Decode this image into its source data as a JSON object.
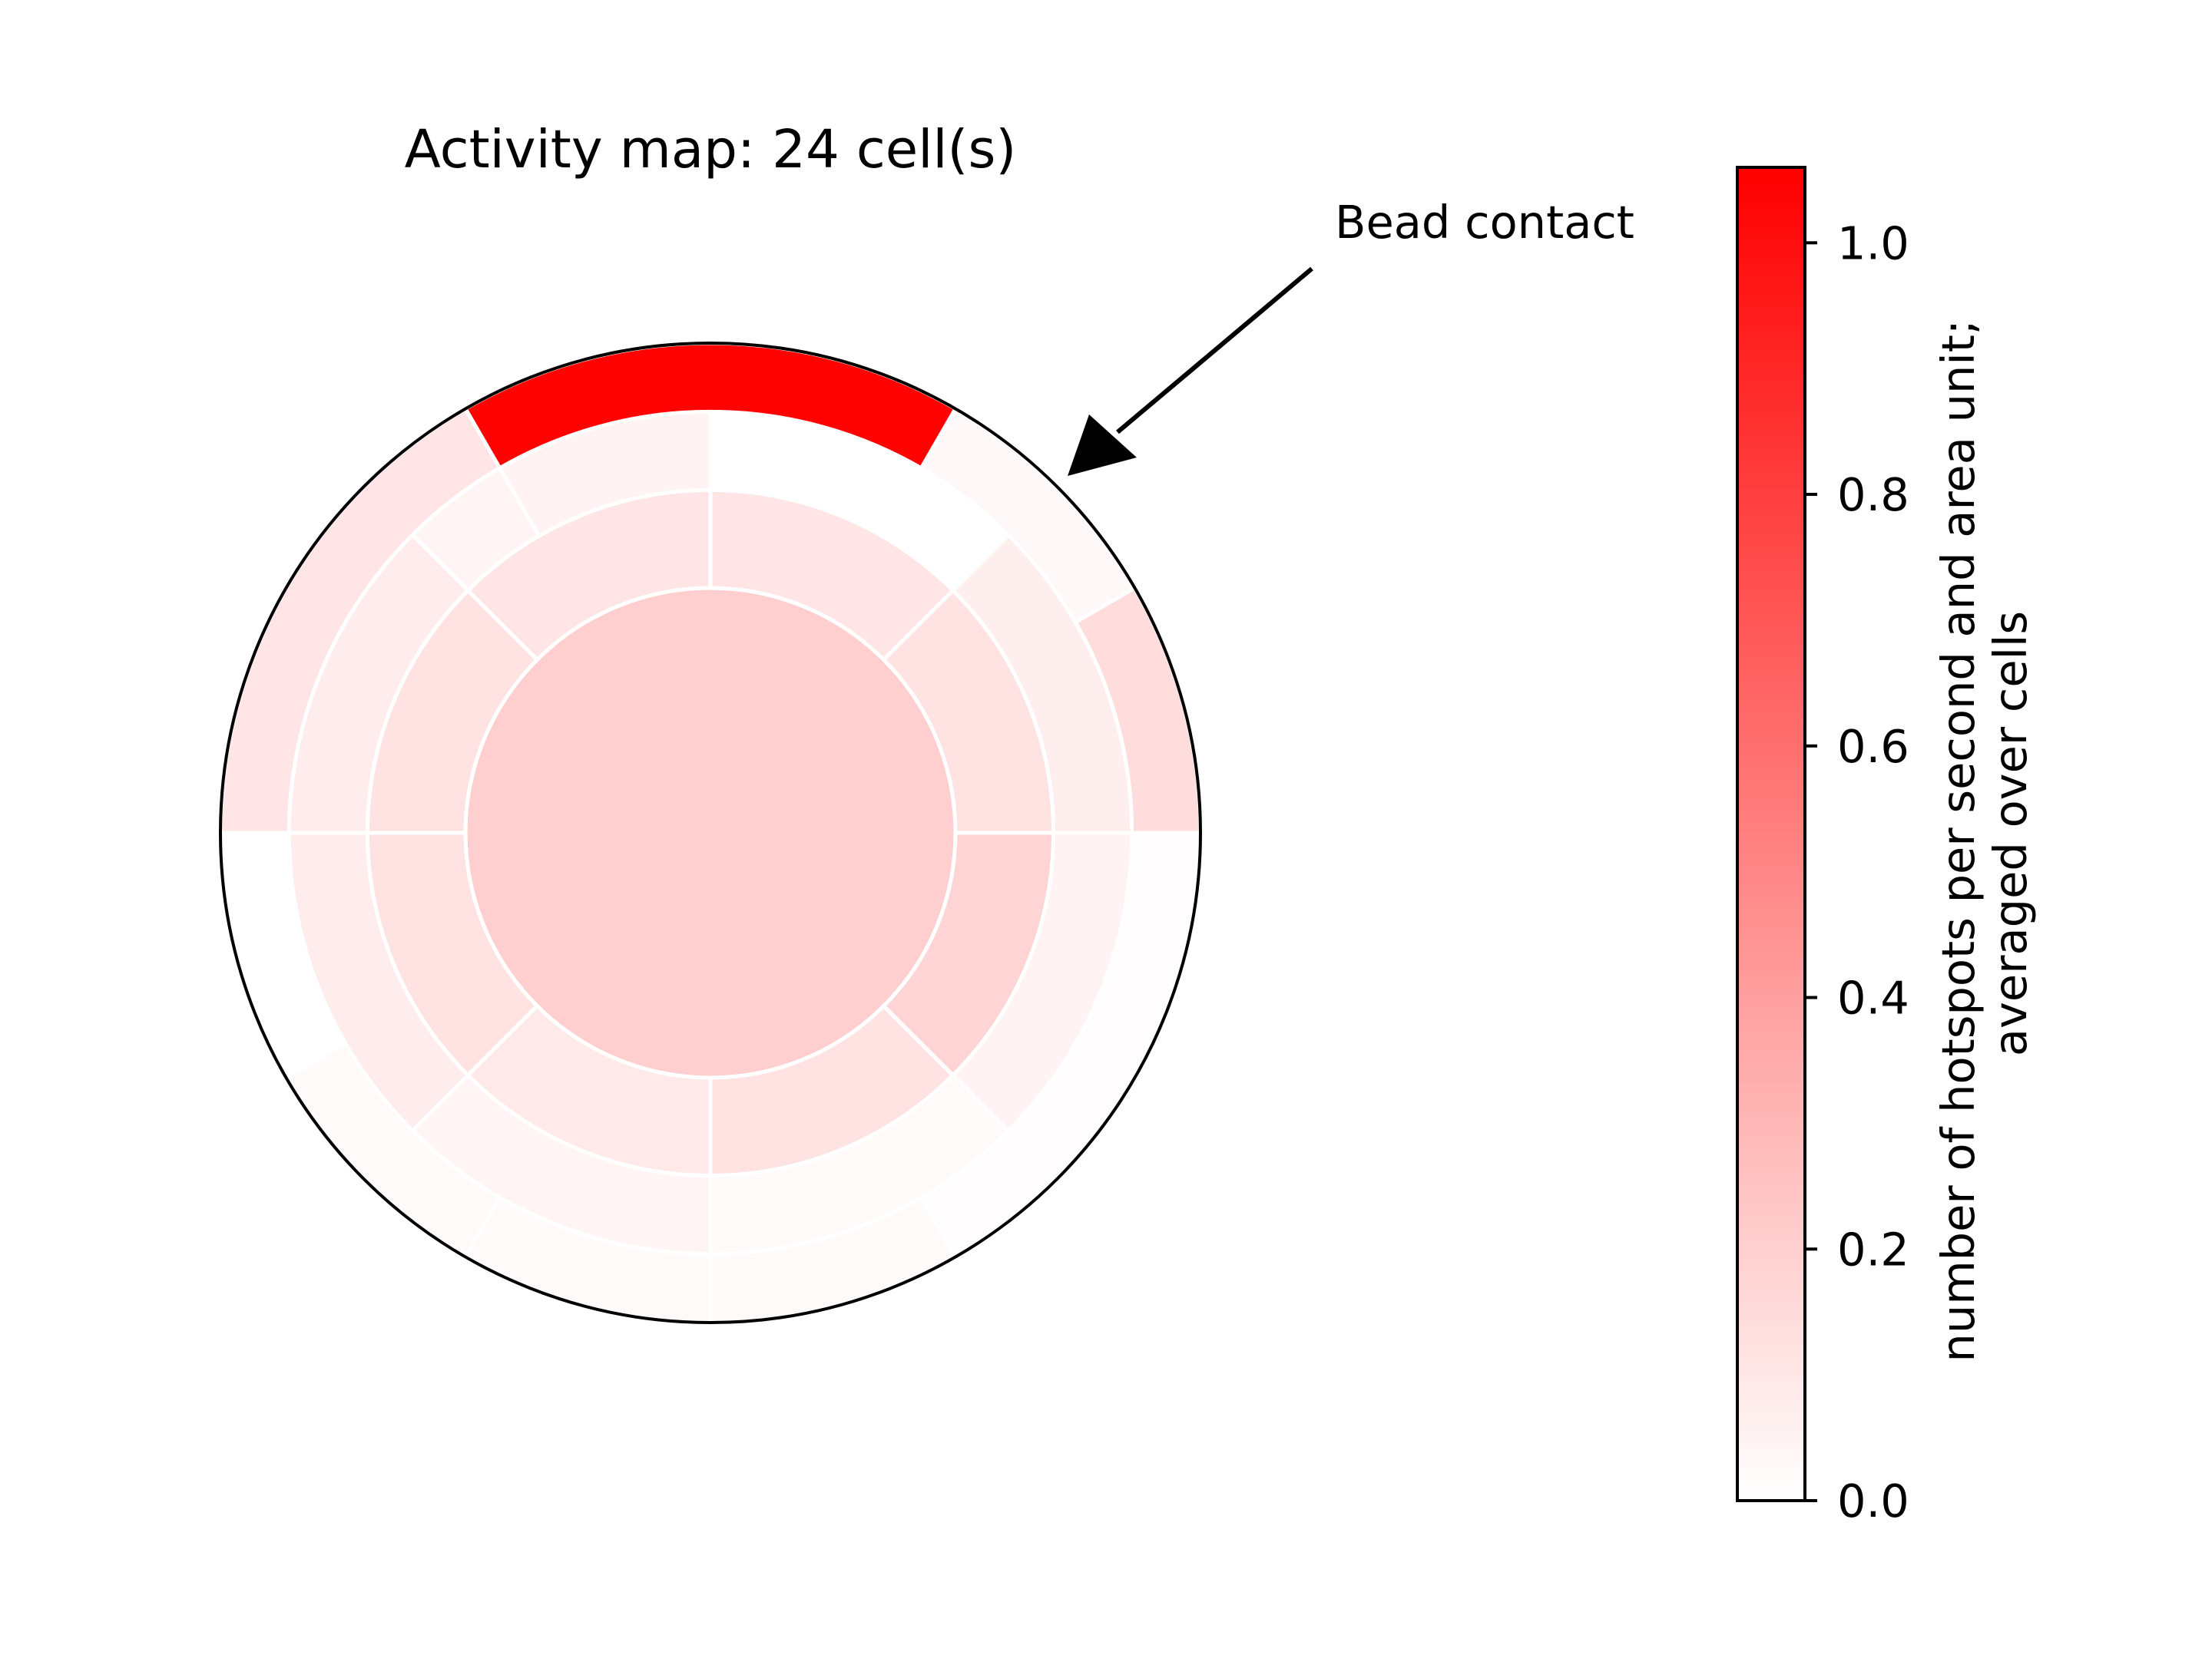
{
  "chart_data": {
    "type": "polar-heatmap",
    "title": "Activity map: 24 cell(s)",
    "annotation": {
      "text": "Bead contact"
    },
    "colorbar": {
      "label_lines": [
        "number of hotspots per second and area unit;",
        "averaged over cells"
      ],
      "min": 0.0,
      "max": 1.06,
      "ticks": [
        0.0,
        0.2,
        0.4,
        0.6,
        0.8,
        1.0
      ],
      "tick_labels": [
        "0.0",
        "0.2",
        "0.4",
        "0.6",
        "0.8",
        "1.0"
      ],
      "color_low": "#ffffff",
      "color_high": "#ff0000"
    },
    "rings": [
      {
        "name": "center",
        "r_inner": 0.0,
        "r_outer": 0.5,
        "sectors": 1,
        "values": [
          0.2
        ]
      },
      {
        "name": "ring-2",
        "r_inner": 0.5,
        "r_outer": 0.7,
        "sectors": 8,
        "values": [
          0.12,
          0.11,
          0.11,
          0.12,
          0.12,
          0.09,
          0.12,
          0.18
        ]
      },
      {
        "name": "ring-3",
        "r_inner": 0.7,
        "r_outer": 0.86,
        "sectors": 8,
        "values": [
          0.07,
          0.0,
          0.05,
          0.08,
          0.08,
          0.04,
          0.02,
          0.05
        ]
      },
      {
        "name": "ring-4",
        "r_inner": 0.86,
        "r_outer": 1.0,
        "sectors": 6,
        "values": [
          0.03,
          1.05,
          0.11,
          0.0,
          0.02,
          0.01
        ]
      }
    ],
    "extra_sectors": [
      {
        "r_inner": 0.86,
        "r_outer": 1.0,
        "angle_start": 0,
        "angle_end": 30,
        "value": 0.14
      },
      {
        "r_inner": 0.7,
        "r_outer": 0.86,
        "angle_start": 120,
        "angle_end": 135,
        "value": 0.04
      },
      {
        "r_inner": 0.86,
        "r_outer": 1.0,
        "angle_start": 210,
        "angle_end": 240,
        "value": 0.02
      },
      {
        "r_inner": 0.86,
        "r_outer": 1.0,
        "angle_start": 240,
        "angle_end": 270,
        "value": 0.02
      }
    ]
  }
}
